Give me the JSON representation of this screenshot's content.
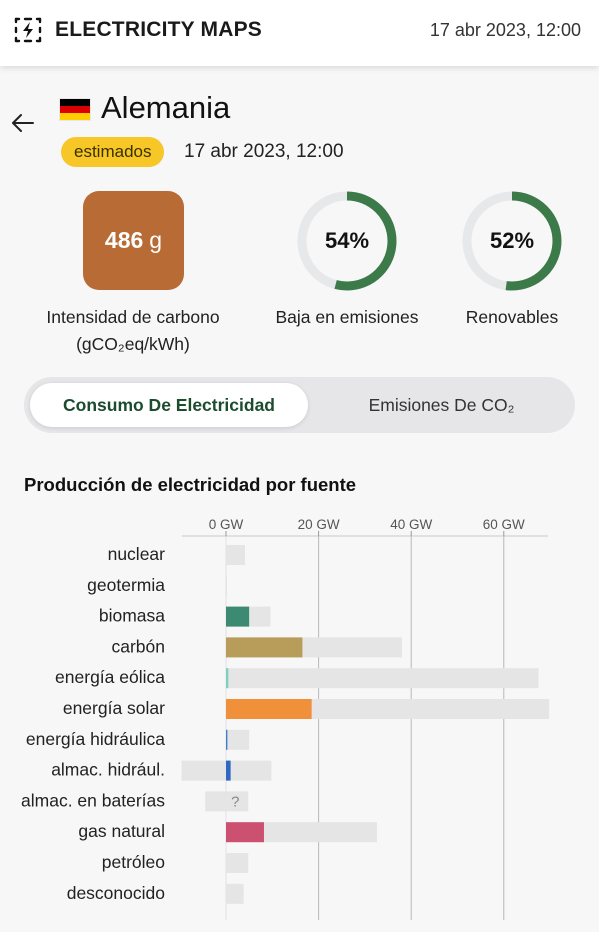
{
  "topbar": {
    "brand": "ELECTRICITY MAPS",
    "date": "17 abr 2023, 12:00",
    "logo_icon": "lightning-square-icon"
  },
  "header": {
    "country": "Alemania",
    "flag_colors": [
      "#000000",
      "#dd0000",
      "#ffce00"
    ],
    "badge": "estimados",
    "badge_color": "#f6c726",
    "date": "17 abr 2023, 12:00"
  },
  "metrics": {
    "carbon_value": "486",
    "carbon_unit": "g",
    "carbon_color": "#b86b35",
    "carbon_label_1": "Intensidad de carbono",
    "carbon_label_2": "(gCO₂eq/kWh)",
    "low_carbon_percent": 54,
    "low_carbon_text": "54%",
    "low_carbon_label": "Baja en emisiones",
    "renewable_percent": 52,
    "renewable_text": "52%",
    "renewable_label": "Renovables",
    "ring_color": "#3c7a4a",
    "ring_track_color": "#e6e8ea"
  },
  "toggle": {
    "active": "Consumo De Electricidad",
    "inactive": "Emisiones De CO₂"
  },
  "chart_data": {
    "type": "bar",
    "title": "Producción de electricidad por fuente",
    "x_tick_labels": [
      "0 GW",
      "20 GW",
      "40 GW",
      "60 GW"
    ],
    "x_ticks": [
      0,
      20,
      40,
      60
    ],
    "xlim": [
      -10,
      70
    ],
    "categories": [
      "nuclear",
      "geotermia",
      "biomasa",
      "carbón",
      "energía eólica",
      "energía solar",
      "energía hidráulica",
      "almac. hidrául.",
      "almac. en baterías",
      "gas natural",
      "petróleo",
      "desconocido"
    ],
    "production_gw": [
      0,
      0,
      5,
      16.5,
      0.5,
      18.5,
      0.3,
      1,
      0,
      8.2,
      0,
      0
    ],
    "capacity_min_gw": [
      0,
      0,
      0,
      0,
      0,
      0,
      0,
      -9.6,
      -4.5,
      0,
      0,
      0
    ],
    "capacity_max_gw": [
      4.1,
      0.2,
      9.6,
      38,
      67.5,
      69.8,
      5,
      9.8,
      4.8,
      32.6,
      4.8,
      3.8
    ],
    "colors": [
      "#9aa0a6",
      "#f2e27a",
      "#3c8a72",
      "#b89c5a",
      "#7fcfc0",
      "#f0903a",
      "#3f7fcc",
      "#2f67c2",
      "#9aa0a6",
      "#cc5070",
      "#9aa0a6",
      "#9aa0a6"
    ],
    "unknown_marker": "?",
    "unknown_index": 8,
    "capacity_color": "#e5e5e6"
  }
}
